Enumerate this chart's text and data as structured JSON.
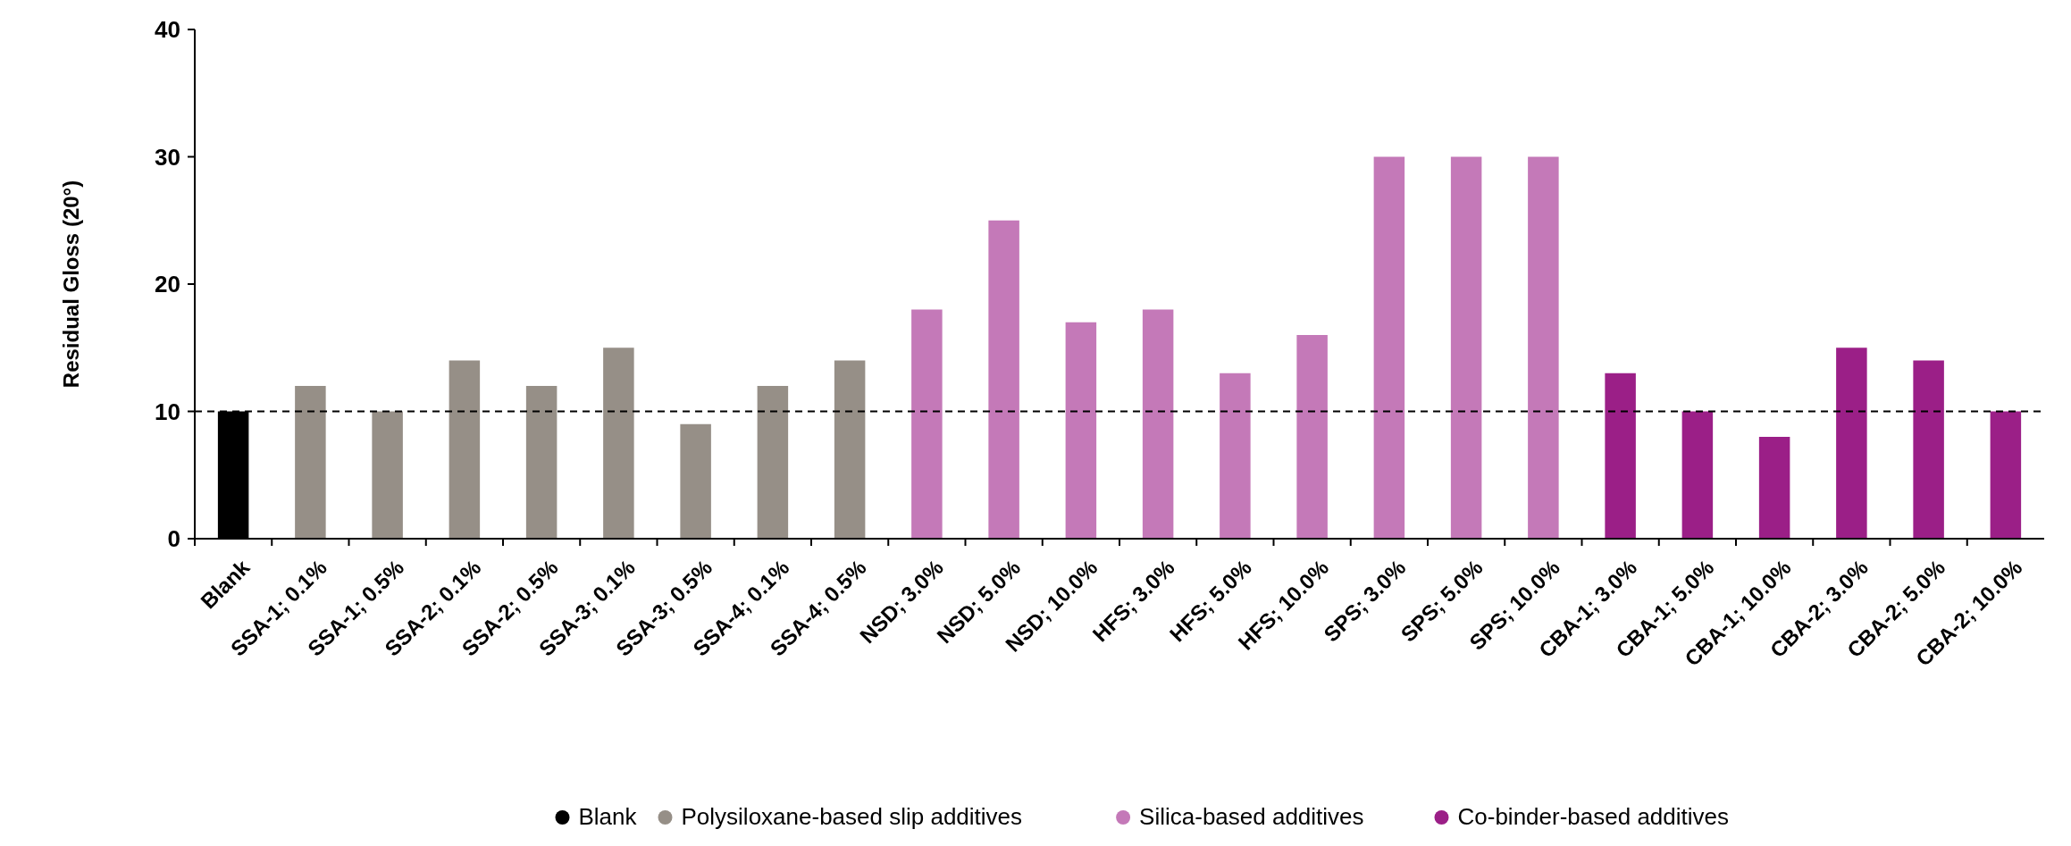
{
  "chart_data": {
    "type": "bar",
    "ylabel": "Residual Gloss (20°)",
    "categories": [
      "Blank",
      "SSA-1; 0.1%",
      "SSA-1; 0.5%",
      "SSA-2; 0.1%",
      "SSA-2; 0.5%",
      "SSA-3; 0.1%",
      "SSA-3; 0.5%",
      "SSA-4; 0.1%",
      "SSA-4; 0.5%",
      "NSD; 3.0%",
      "NSD; 5.0%",
      "NSD; 10.0%",
      "HFS; 3.0%",
      "HFS; 5.0%",
      "HFS; 10.0%",
      "SPS; 3.0%",
      "SPS; 5.0%",
      "SPS; 10.0%",
      "CBA-1; 3.0%",
      "CBA-1; 5.0%",
      "CBA-1; 10.0%",
      "CBA-2; 3.0%",
      "CBA-2; 5.0%",
      "CBA-2; 10.0%"
    ],
    "series": [
      {
        "name": "Blank",
        "color": "#000000",
        "values": [
          10,
          null,
          null,
          null,
          null,
          null,
          null,
          null,
          null,
          null,
          null,
          null,
          null,
          null,
          null,
          null,
          null,
          null,
          null,
          null,
          null,
          null,
          null,
          null
        ]
      },
      {
        "name": "Polysiloxane-based slip additives",
        "color": "#968f87",
        "values": [
          null,
          12,
          10,
          14,
          12,
          15,
          9,
          12,
          14,
          null,
          null,
          null,
          null,
          null,
          null,
          null,
          null,
          null,
          null,
          null,
          null,
          null,
          null,
          null
        ]
      },
      {
        "name": "Silica-based additives",
        "color": "#c479b8",
        "values": [
          null,
          null,
          null,
          null,
          null,
          null,
          null,
          null,
          null,
          18,
          25,
          17,
          18,
          13,
          16,
          30,
          30,
          30,
          null,
          null,
          null,
          null,
          null,
          null
        ]
      },
      {
        "name": "Co-binder-based additives",
        "color": "#9b1f87",
        "values": [
          null,
          null,
          null,
          null,
          null,
          null,
          null,
          null,
          null,
          null,
          null,
          null,
          null,
          null,
          null,
          null,
          null,
          null,
          13,
          10,
          8,
          15,
          14,
          10
        ]
      }
    ],
    "ylim": [
      0,
      40
    ],
    "yticks": [
      0,
      10,
      20,
      30,
      40
    ],
    "ref_lines": [
      {
        "axis": "y",
        "value": 10,
        "line_style": "dashed",
        "color": "#000000"
      }
    ],
    "legend": "bottom"
  }
}
